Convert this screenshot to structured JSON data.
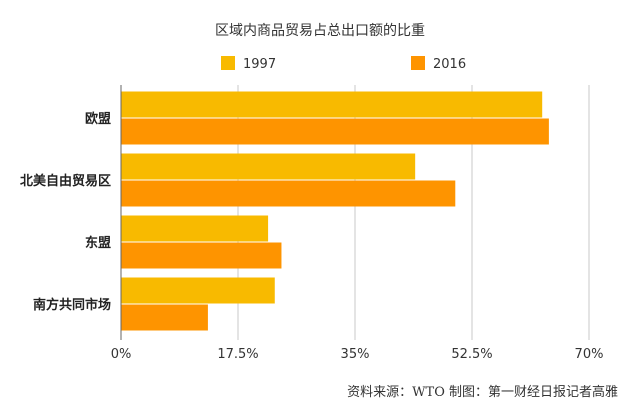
{
  "chart_data": {
    "type": "bar",
    "orientation": "horizontal",
    "title": "区域内商品贸易占总出口额的比重",
    "categories": [
      "欧盟",
      "北美自由贸易区",
      "东盟",
      "南方共同市场"
    ],
    "series": [
      {
        "name": "1997",
        "values": [
          63,
          44,
          22,
          23
        ],
        "color": "#F8BA00"
      },
      {
        "name": "2016",
        "values": [
          64,
          50,
          24,
          13
        ],
        "color": "#FE9400"
      }
    ],
    "xlim": [
      0,
      70
    ],
    "xticks": [
      0,
      17.5,
      35,
      52.5,
      70
    ],
    "xtick_labels": [
      "0%",
      "17.5%",
      "35%",
      "52.5%",
      "70%"
    ],
    "grid": true,
    "legend_position": "top"
  },
  "source_text": "资料来源：WTO 制图：第一财经日报记者高雅"
}
